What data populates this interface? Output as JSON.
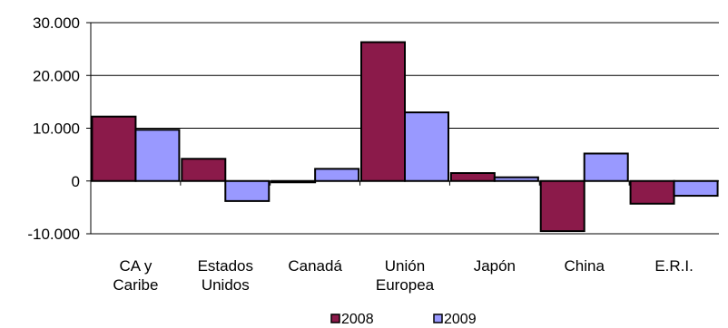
{
  "chart_data": {
    "type": "bar",
    "categories": [
      [
        "CA y",
        "Caribe"
      ],
      [
        "Estados",
        "Unidos"
      ],
      [
        "Canadá"
      ],
      [
        "Unión",
        "Europea"
      ],
      [
        "Japón"
      ],
      [
        "China"
      ],
      [
        "E.R.I."
      ]
    ],
    "series": [
      {
        "name": "2008",
        "color": "#8B1A4A",
        "values": [
          12200,
          4200,
          -150,
          26300,
          1500,
          -9500,
          -4300
        ]
      },
      {
        "name": "2009",
        "color": "#9999FF",
        "values": [
          9700,
          -3800,
          2300,
          13000,
          700,
          5200,
          -2800
        ]
      }
    ],
    "ylim": [
      -10000,
      30000
    ],
    "yticks": [
      -10000,
      0,
      10000,
      20000,
      30000
    ],
    "ytick_labels": [
      "-10.000",
      "0",
      "10.000",
      "20.000",
      "30.000"
    ],
    "grid": true,
    "legend": "bottom"
  }
}
